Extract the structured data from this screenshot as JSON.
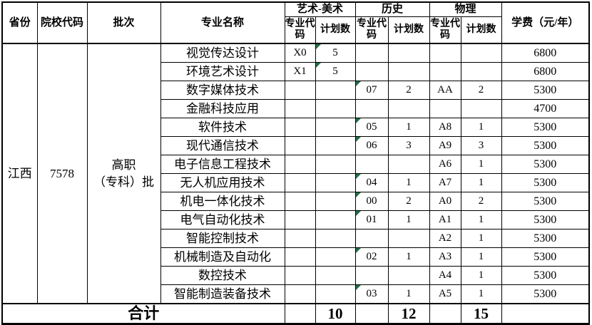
{
  "colors": {
    "border": "#000000",
    "background": "#ffffff",
    "triangle": "#1e7145"
  },
  "icons": {
    "cell_flag": "green corner error-indicator triangle"
  },
  "table": {
    "header": {
      "province": "省份",
      "school_code": "院校代码",
      "batch": "批次",
      "major_name": "专业名称",
      "group_art": "艺术-美术",
      "group_history": "历史",
      "group_physics": "物理",
      "sub_code": "专业代码",
      "sub_plan": "计划数",
      "tuition": "学费（元/年）"
    },
    "info": {
      "province": "江西",
      "school_code": "7578",
      "batch_lines": [
        "高职",
        "（专科）批"
      ]
    },
    "rows": [
      {
        "major": "视觉传达设计",
        "art_code": "X0",
        "art_plan": "5",
        "hist_code": "",
        "hist_plan": "",
        "phys_code": "",
        "phys_plan": "",
        "fee": "6800",
        "triangles": [
          "art_plan"
        ]
      },
      {
        "major": "环境艺术设计",
        "art_code": "X1",
        "art_plan": "5",
        "hist_code": "",
        "hist_plan": "",
        "phys_code": "",
        "phys_plan": "",
        "fee": "6800",
        "triangles": [
          "art_plan"
        ]
      },
      {
        "major": "数字媒体技术",
        "art_code": "",
        "art_plan": "",
        "hist_code": "07",
        "hist_plan": "2",
        "phys_code": "AA",
        "phys_plan": "2",
        "fee": "5300",
        "triangles": [
          "hist_code"
        ]
      },
      {
        "major": "金融科技应用",
        "art_code": "",
        "art_plan": "",
        "hist_code": "",
        "hist_plan": "",
        "phys_code": "",
        "phys_plan": "",
        "fee": "4700",
        "triangles": []
      },
      {
        "major": "软件技术",
        "art_code": "",
        "art_plan": "",
        "hist_code": "05",
        "hist_plan": "1",
        "phys_code": "A8",
        "phys_plan": "1",
        "fee": "5300",
        "triangles": [
          "hist_code"
        ]
      },
      {
        "major": "现代通信技术",
        "art_code": "",
        "art_plan": "",
        "hist_code": "06",
        "hist_plan": "3",
        "phys_code": "A9",
        "phys_plan": "3",
        "fee": "5300",
        "triangles": [
          "hist_code"
        ]
      },
      {
        "major": "电子信息工程技术",
        "art_code": "",
        "art_plan": "",
        "hist_code": "",
        "hist_plan": "",
        "phys_code": "A6",
        "phys_plan": "1",
        "fee": "5300",
        "triangles": []
      },
      {
        "major": "无人机应用技术",
        "art_code": "",
        "art_plan": "",
        "hist_code": "04",
        "hist_plan": "1",
        "phys_code": "A7",
        "phys_plan": "1",
        "fee": "5300",
        "triangles": [
          "hist_code"
        ]
      },
      {
        "major": "机电一体化技术",
        "art_code": "",
        "art_plan": "",
        "hist_code": "00",
        "hist_plan": "2",
        "phys_code": "A0",
        "phys_plan": "2",
        "fee": "5300",
        "triangles": [
          "hist_code"
        ]
      },
      {
        "major": "电气自动化技术",
        "art_code": "",
        "art_plan": "",
        "hist_code": "01",
        "hist_plan": "1",
        "phys_code": "A1",
        "phys_plan": "1",
        "fee": "5300",
        "triangles": [
          "hist_code"
        ]
      },
      {
        "major": "智能控制技术",
        "art_code": "",
        "art_plan": "",
        "hist_code": "",
        "hist_plan": "",
        "phys_code": "A2",
        "phys_plan": "1",
        "fee": "5300",
        "triangles": []
      },
      {
        "major": "机械制造及自动化",
        "art_code": "",
        "art_plan": "",
        "hist_code": "02",
        "hist_plan": "1",
        "phys_code": "A3",
        "phys_plan": "1",
        "fee": "5300",
        "triangles": [
          "hist_code"
        ]
      },
      {
        "major": "数控技术",
        "art_code": "",
        "art_plan": "",
        "hist_code": "",
        "hist_plan": "",
        "phys_code": "A4",
        "phys_plan": "1",
        "fee": "5300",
        "triangles": []
      },
      {
        "major": "智能制造装备技术",
        "art_code": "",
        "art_plan": "",
        "hist_code": "03",
        "hist_plan": "1",
        "phys_code": "A5",
        "phys_plan": "1",
        "fee": "5300",
        "triangles": [
          "hist_code"
        ]
      }
    ],
    "total": {
      "label": "合计",
      "art_code": "",
      "art_plan": "10",
      "hist_code": "",
      "hist_plan": "12",
      "phys_code": "",
      "phys_plan": "15",
      "fee": ""
    }
  }
}
